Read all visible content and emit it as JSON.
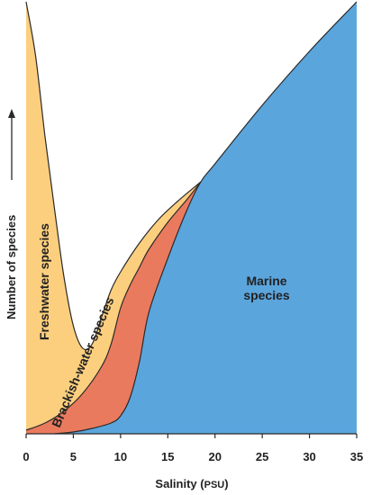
{
  "chart_data": {
    "type": "area",
    "xlabel_main": "Salinity (",
    "xlabel_unit": "PSU",
    "xlabel_close": ")",
    "ylabel": "Number of species",
    "xlim": [
      0,
      35
    ],
    "x_ticks": [
      0,
      5,
      10,
      15,
      20,
      25,
      30,
      35
    ],
    "x_tick_labels": [
      "0",
      "5",
      "10",
      "15",
      "20",
      "25",
      "30",
      "35"
    ],
    "grid": false,
    "colors": {
      "freshwater": "#fccf7f",
      "brackish": "#ea7a5e",
      "marine": "#5ba5dd",
      "outline": "#2a2a2a"
    },
    "series": [
      {
        "name": "Marine species",
        "label_lines": [
          "Marine",
          "species"
        ],
        "x": [
          3,
          5,
          7,
          9,
          10,
          11,
          12,
          13,
          15,
          17,
          18.5,
          20,
          25,
          30,
          35
        ],
        "y": [
          0,
          2,
          6,
          12,
          20,
          40,
          80,
          135,
          195,
          248,
          280,
          300,
          365,
          425,
          480
        ]
      },
      {
        "name": "Brackish-water species",
        "label_lines": [
          "Brackish-water species"
        ],
        "x": [
          0,
          2,
          4,
          6,
          8,
          9,
          10,
          11,
          12,
          13,
          15,
          17,
          18.5
        ],
        "y": [
          4,
          12,
          25,
          45,
          75,
          100,
          140,
          165,
          185,
          205,
          235,
          260,
          280
        ]
      },
      {
        "name": "Freshwater species",
        "label_lines": [
          "Freshwater species"
        ],
        "x": [
          0,
          1,
          2,
          3,
          4,
          5,
          6,
          7,
          8,
          9,
          10,
          12,
          14,
          16,
          18.5
        ],
        "y": [
          480,
          420,
          330,
          250,
          175,
          120,
          95,
          100,
          130,
          160,
          180,
          212,
          238,
          258,
          280
        ]
      }
    ]
  }
}
